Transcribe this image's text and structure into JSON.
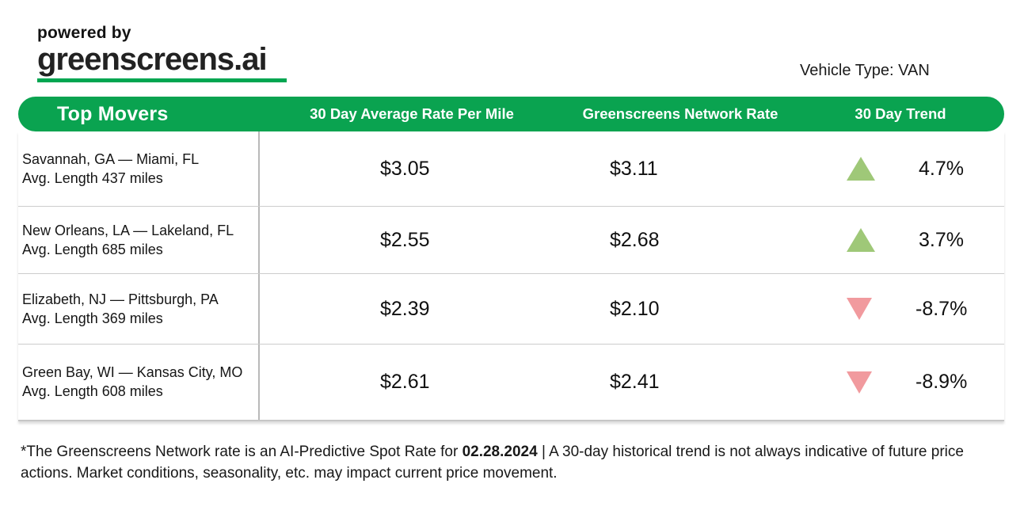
{
  "branding": {
    "powered_by": "powered by",
    "brand_name": "greenscreens.ai",
    "vehicle_type": "Vehicle Type: VAN"
  },
  "table": {
    "columns": {
      "title": "Top Movers",
      "avg_rate": "30 Day Average Rate Per Mile",
      "network_rate": "Greenscreens Network Rate",
      "trend": "30 Day Trend"
    },
    "rows": [
      {
        "route": "Savannah, GA — Miami, FL",
        "avg_length": "Avg. Length 437 miles",
        "avg_rate": "$3.05",
        "network_rate": "$3.11",
        "trend": "4.7%",
        "direction": "up"
      },
      {
        "route": "New Orleans, LA — Lakeland, FL",
        "avg_length": "Avg. Length 685 miles",
        "avg_rate": "$2.55",
        "network_rate": "$2.68",
        "trend": "3.7%",
        "direction": "up"
      },
      {
        "route": "Elizabeth, NJ — Pittsburgh, PA",
        "avg_length": "Avg. Length 369 miles",
        "avg_rate": "$2.39",
        "network_rate": "$2.10",
        "trend": "-8.7%",
        "direction": "down"
      },
      {
        "route": "Green Bay, WI — Kansas City, MO",
        "avg_length": "Avg. Length 608 miles",
        "avg_rate": "$2.61",
        "network_rate": "$2.41",
        "trend": "-8.9%",
        "direction": "down"
      }
    ]
  },
  "footer": {
    "note_pre": "*The Greenscreens Network rate is an AI-Predictive Spot Rate for ",
    "note_date": "02.28.2024",
    "note_post": " | A 30-day historical trend is not always indicative of future price actions. Market conditions, seasonality, etc. may impact current price movement."
  },
  "colors": {
    "brand-green": "#0aa350",
    "underline-green": "#00a651",
    "up": "#9fc878",
    "down": "#f19a9e"
  }
}
